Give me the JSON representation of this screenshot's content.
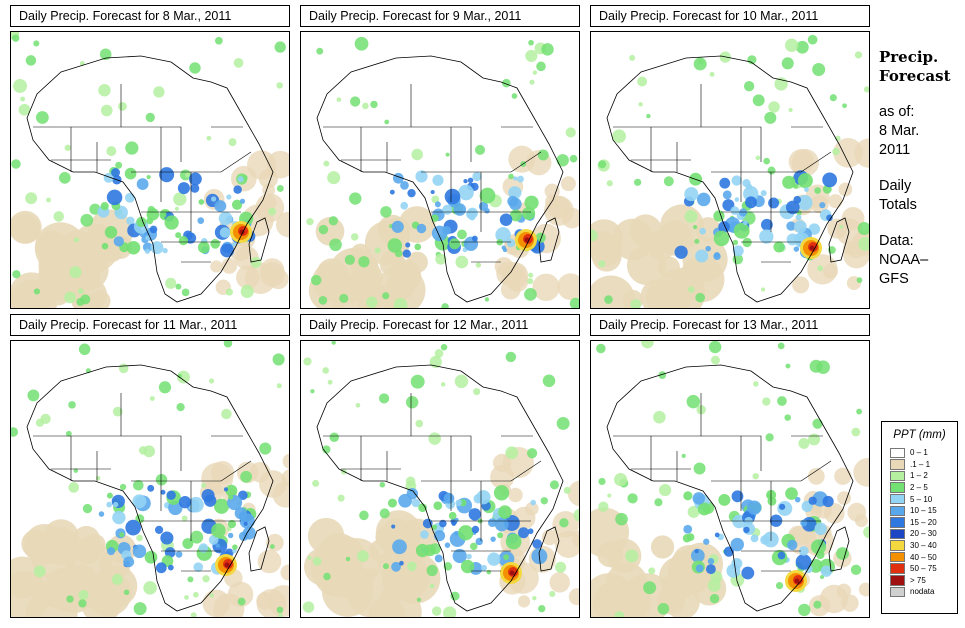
{
  "panels": [
    {
      "title": "Daily Precip. Forecast for  8 Mar., 2011",
      "map_label": "precipitation map 8 Mar. 2011"
    },
    {
      "title": "Daily Precip. Forecast for  9 Mar., 2011",
      "map_label": "precipitation map 9 Mar. 2011"
    },
    {
      "title": "Daily Precip. Forecast for  10 Mar., 2011",
      "map_label": "precipitation map 10 Mar. 2011"
    },
    {
      "title": "Daily Precip. Forecast for  11 Mar., 2011",
      "map_label": "precipitation map 11 Mar. 2011"
    },
    {
      "title": "Daily Precip. Forecast for  12 Mar., 2011",
      "map_label": "precipitation map 12 Mar. 2011"
    },
    {
      "title": "Daily Precip. Forecast for  13 Mar., 2011",
      "map_label": "precipitation map 13 Mar. 2011"
    }
  ],
  "caption": {
    "title_line1": "Precip.",
    "title_line2": "Forecast",
    "asof_line1": "as of:",
    "asof_line2": "8 Mar.",
    "asof_line3": "2011",
    "totals_line1": "Daily",
    "totals_line2": "Totals",
    "data_line1": "Data:",
    "data_line2": "NOAA–",
    "data_line3": "GFS"
  },
  "legend": {
    "title": "PPT (mm)",
    "items": [
      {
        "label": "0 – 1",
        "color": "#ffffff"
      },
      {
        "label": ".1 – 1",
        "color": "#e8d8b8"
      },
      {
        "label": "1 – 2",
        "color": "#b4f0a0"
      },
      {
        "label": "2 – 5",
        "color": "#72e072"
      },
      {
        "label": "5 – 10",
        "color": "#94d4f4"
      },
      {
        "label": "10 – 15",
        "color": "#5aa8ec"
      },
      {
        "label": "15 – 20",
        "color": "#2f78e0"
      },
      {
        "label": "20 – 30",
        "color": "#1c46c4"
      },
      {
        "label": "30 – 40",
        "color": "#f4d840"
      },
      {
        "label": "40 – 50",
        "color": "#f49000"
      },
      {
        "label": "50 – 75",
        "color": "#e03010"
      },
      {
        "label": "> 75",
        "color": "#a01010"
      },
      {
        "label": "nodata",
        "color": "#d0d0d0"
      }
    ]
  }
}
